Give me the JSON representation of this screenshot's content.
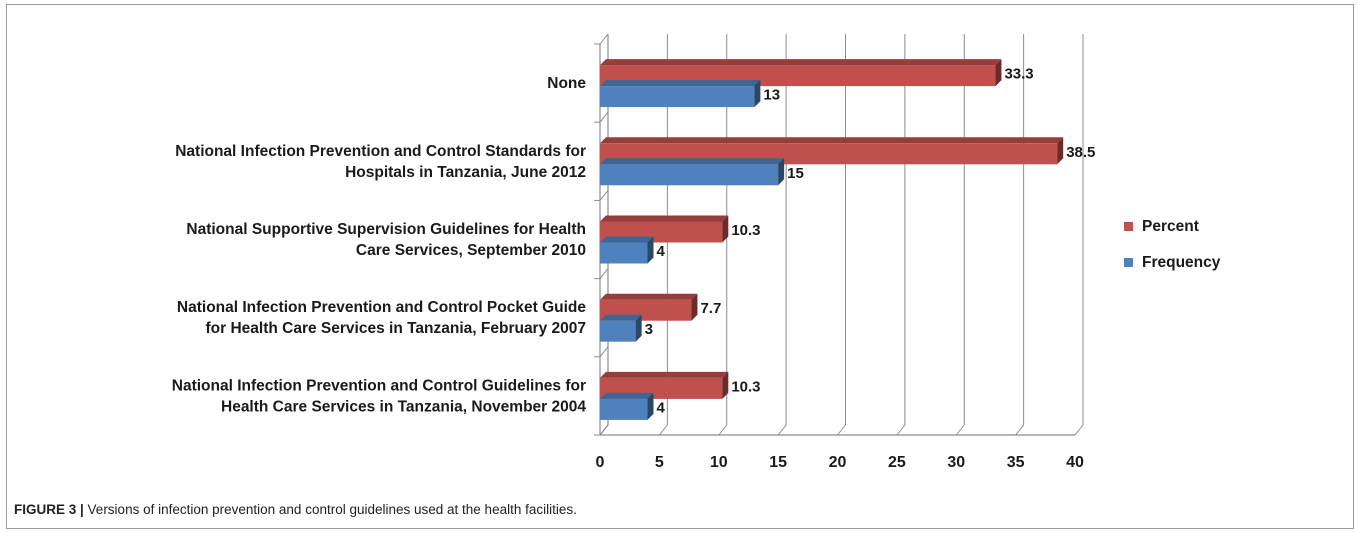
{
  "chart_data": {
    "type": "bar",
    "orientation": "horizontal",
    "categories": [
      [
        "None"
      ],
      [
        "National Infection Prevention and Control Standards for",
        "Hospitals in Tanzania, June 2012"
      ],
      [
        "National Supportive Supervision Guidelines for Health",
        "Care Services, September 2010"
      ],
      [
        "National Infection Prevention and Control Pocket Guide",
        "for Health Care Services in Tanzania, February 2007"
      ],
      [
        "National Infection Prevention and Control Guidelines for",
        "Health Care Services in Tanzania, November 2004"
      ]
    ],
    "series": [
      {
        "name": "Percent",
        "color": "#c0504d",
        "values": [
          33.3,
          38.5,
          10.3,
          7.7,
          10.3
        ],
        "labels": [
          "33.3",
          "38.5",
          "10.3",
          "7.7",
          "10.3"
        ]
      },
      {
        "name": "Frequency",
        "color": "#4f81bd",
        "values": [
          13,
          15,
          4,
          3,
          4
        ],
        "labels": [
          "13",
          "15",
          "4",
          "3",
          "4"
        ]
      }
    ],
    "xlim": [
      0,
      40
    ],
    "x_ticks": [
      0,
      5,
      10,
      15,
      20,
      25,
      30,
      35,
      40
    ],
    "grid": true,
    "style": "3d",
    "legend_position": "right"
  },
  "caption": {
    "label": "FIGURE 3 |",
    "text": " Versions of infection prevention and control guidelines used at the health facilities."
  }
}
